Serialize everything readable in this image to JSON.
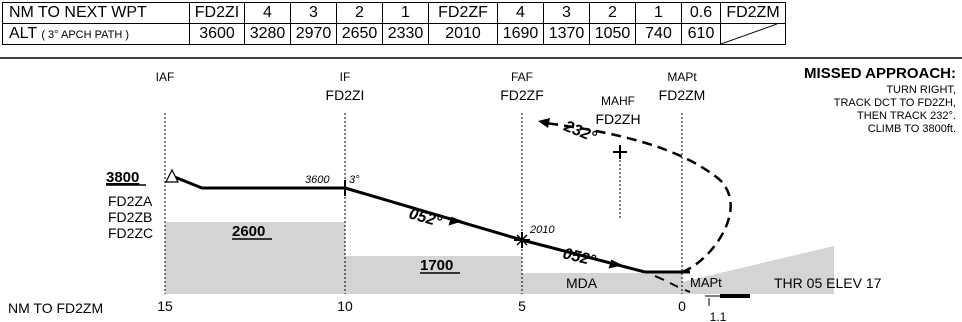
{
  "table": {
    "row1": {
      "label": "NM TO NEXT WPT",
      "cells": [
        "FD2ZI",
        "4",
        "3",
        "2",
        "1",
        "FD2ZF",
        "4",
        "3",
        "2",
        "1",
        "0.6",
        "FD2ZM"
      ]
    },
    "row2": {
      "label": "ALT",
      "sublabel": "( 3° APCH PATH )",
      "cells": [
        "3600",
        "3280",
        "2970",
        "2650",
        "2330",
        "2010",
        "1690",
        "1370",
        "1050",
        "740",
        "610",
        ""
      ]
    }
  },
  "fixes": {
    "iaf": {
      "role": "IAF"
    },
    "if": {
      "role": "IF",
      "name": "FD2ZI"
    },
    "faf": {
      "role": "FAF",
      "name": "FD2ZF"
    },
    "mahf": {
      "role": "MAHF",
      "name": "FD2ZH"
    },
    "mapt": {
      "role": "MAPt",
      "name": "FD2ZM"
    }
  },
  "missed_approach": {
    "title": "MISSED APPROACH:",
    "lines": [
      "TURN RIGHT,",
      "TRACK DCT TO FD2ZH,",
      "THEN TRACK 232°.",
      "CLIMB TO 3800ft."
    ]
  },
  "profile": {
    "iaf_alt": "3800",
    "iaf_fixes": [
      "FD2ZA",
      "FD2ZB",
      "FD2ZC"
    ],
    "if_alt_label": "3600",
    "glide_angle": "3°",
    "faf_alt_label": "2010",
    "course_1": "052°",
    "course_2": "052°",
    "missed_course": "232°",
    "msa_1": "2600",
    "msa_2": "1700",
    "mda_label": "MDA",
    "mapt_ground_label": "MAPt",
    "threshold_label": "THR 05 ELEV 17"
  },
  "axis": {
    "label": "NM TO FD2ZM",
    "ticks": [
      "15",
      "10",
      "5",
      "0"
    ],
    "extra_tick": "1.1"
  }
}
